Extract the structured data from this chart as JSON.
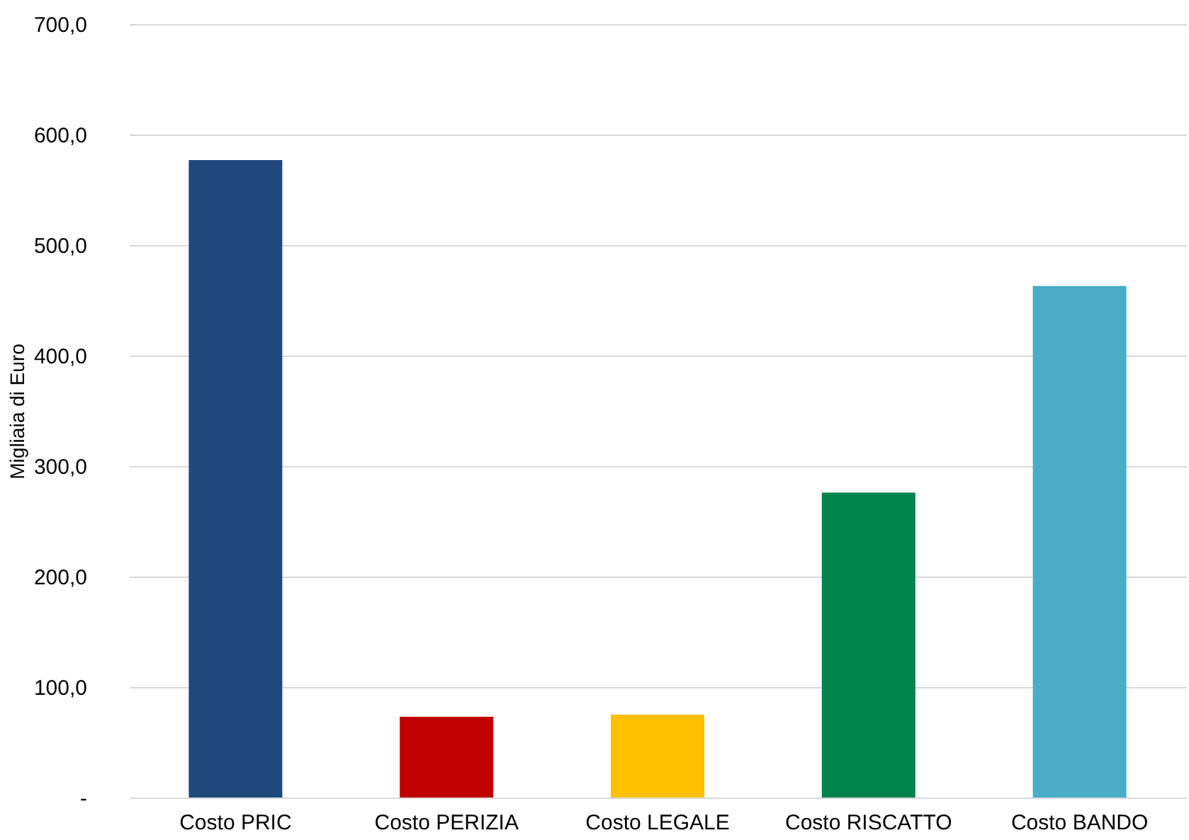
{
  "chart_data": {
    "type": "bar",
    "ylabel": "Migliaia di Euro",
    "categories": [
      "Costo PRIC",
      "Costo PERIZIA",
      "Costo LEGALE",
      "Costo RISCATTO",
      "Costo BANDO"
    ],
    "values": [
      577,
      73,
      75,
      276,
      463
    ],
    "colors": [
      "#1f497d",
      "#c00000",
      "#ffc000",
      "#00834d",
      "#4bacc6"
    ],
    "ylim": [
      0,
      700
    ],
    "yticks": [
      {
        "value": 0,
        "label": "-"
      },
      {
        "value": 100,
        "label": "100,0"
      },
      {
        "value": 200,
        "label": "200,0"
      },
      {
        "value": 300,
        "label": "300,0"
      },
      {
        "value": 400,
        "label": "400,0"
      },
      {
        "value": 500,
        "label": "500,0"
      },
      {
        "value": 600,
        "label": "600,0"
      },
      {
        "value": 700,
        "label": "700,0"
      }
    ],
    "grid": "y",
    "legend": false
  }
}
